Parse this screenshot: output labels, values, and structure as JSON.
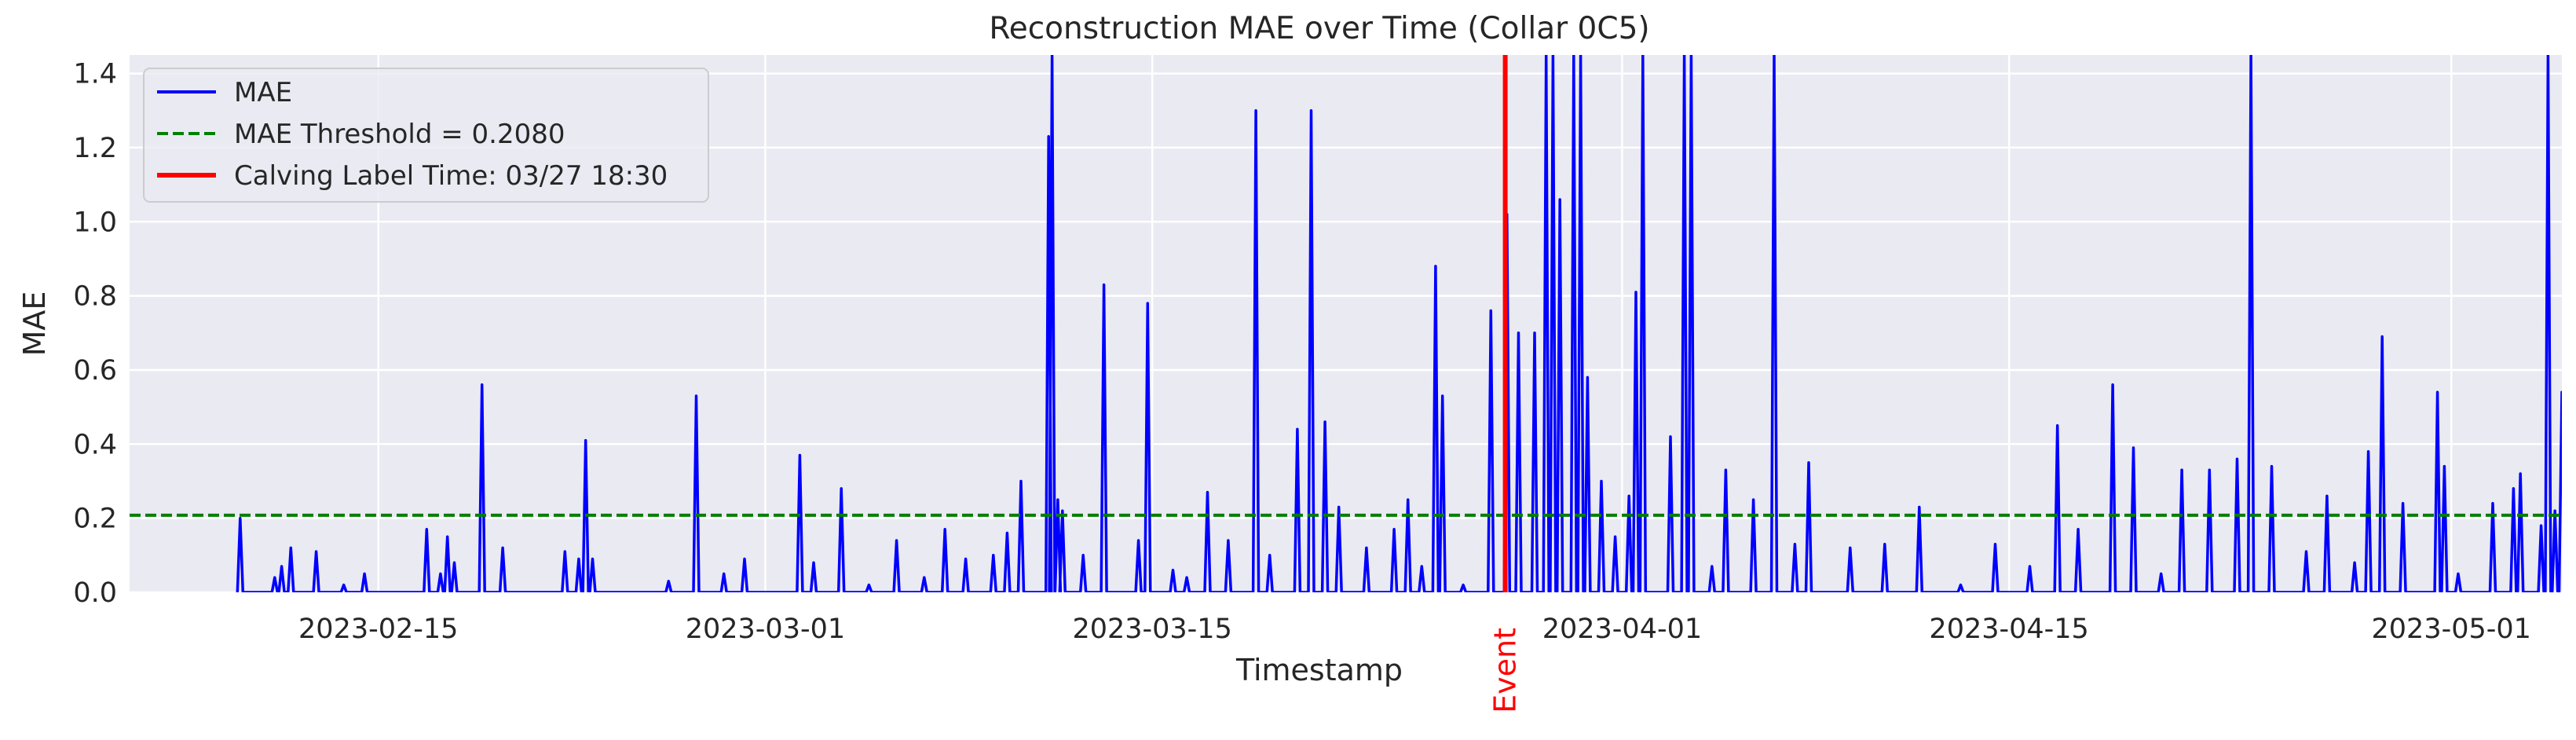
{
  "chart_data": {
    "type": "line",
    "title": "Reconstruction MAE over Time (Collar 0C5)",
    "xlabel": "Timestamp",
    "ylabel": "MAE",
    "xlim": [
      "2023-02-06",
      "2023-05-05"
    ],
    "ylim": [
      0,
      1.45
    ],
    "x_tick_labels": [
      "2023-02-15",
      "2023-03-01",
      "2023-03-15",
      "2023-04-01",
      "2023-04-15",
      "2023-05-01"
    ],
    "y_tick_labels": [
      "0.0",
      "0.2",
      "0.4",
      "0.6",
      "0.8",
      "1.0",
      "1.2",
      "1.4"
    ],
    "grid": true,
    "legend_position": "upper-left",
    "threshold": {
      "label": "MAE Threshold = 0.2080",
      "value": 0.208,
      "color": "#008000"
    },
    "event": {
      "label": "Calving Label Time: 03/27 18:30",
      "x": "2023-03-27 18:30",
      "marker_text": "Event",
      "color": "#ff0000"
    },
    "series": [
      {
        "name": "MAE",
        "color": "#0000ff",
        "points": [
          [
            "2023-02-10 00:00",
            0.2
          ],
          [
            "2023-02-10 06:00",
            0
          ],
          [
            "2023-02-11 06:00",
            0.04
          ],
          [
            "2023-02-11 12:00",
            0.07
          ],
          [
            "2023-02-11 20:00",
            0.12
          ],
          [
            "2023-02-12 06:00",
            0
          ],
          [
            "2023-02-12 18:00",
            0.11
          ],
          [
            "2023-02-13 18:00",
            0.02
          ],
          [
            "2023-02-14 12:00",
            0.05
          ],
          [
            "2023-02-16 18:00",
            0.17
          ],
          [
            "2023-02-17 06:00",
            0.05
          ],
          [
            "2023-02-17 12:00",
            0.15
          ],
          [
            "2023-02-17 18:00",
            0.08
          ],
          [
            "2023-02-18 18:00",
            0.56
          ],
          [
            "2023-02-19 12:00",
            0.12
          ],
          [
            "2023-02-21 18:00",
            0.11
          ],
          [
            "2023-02-22 06:00",
            0.09
          ],
          [
            "2023-02-22 12:00",
            0.41
          ],
          [
            "2023-02-22 18:00",
            0.09
          ],
          [
            "2023-02-25 12:00",
            0.03
          ],
          [
            "2023-02-26 12:00",
            0.53
          ],
          [
            "2023-02-27 12:00",
            0.05
          ],
          [
            "2023-02-28 06:00",
            0.09
          ],
          [
            "2023-03-02 06:00",
            0.37
          ],
          [
            "2023-03-02 18:00",
            0.08
          ],
          [
            "2023-03-03 18:00",
            0.28
          ],
          [
            "2023-03-04 18:00",
            0.02
          ],
          [
            "2023-03-05 18:00",
            0.14
          ],
          [
            "2023-03-06 18:00",
            0.04
          ],
          [
            "2023-03-07 12:00",
            0.17
          ],
          [
            "2023-03-08 06:00",
            0.09
          ],
          [
            "2023-03-09 06:00",
            0.1
          ],
          [
            "2023-03-09 18:00",
            0.16
          ],
          [
            "2023-03-10 06:00",
            0.3
          ],
          [
            "2023-03-11 06:00",
            1.23
          ],
          [
            "2023-03-11 09:00",
            1.45
          ],
          [
            "2023-03-11 14:00",
            0.25
          ],
          [
            "2023-03-11 18:00",
            0.22
          ],
          [
            "2023-03-12 12:00",
            0.1
          ],
          [
            "2023-03-13 06:00",
            0.83
          ],
          [
            "2023-03-14 12:00",
            0.14
          ],
          [
            "2023-03-14 20:00",
            0.78
          ],
          [
            "2023-03-15 18:00",
            0.06
          ],
          [
            "2023-03-16 06:00",
            0.04
          ],
          [
            "2023-03-17 00:00",
            0.27
          ],
          [
            "2023-03-17 18:00",
            0.14
          ],
          [
            "2023-03-18 18:00",
            1.3
          ],
          [
            "2023-03-19 06:00",
            0.1
          ],
          [
            "2023-03-20 06:00",
            0.44
          ],
          [
            "2023-03-20 18:00",
            1.3
          ],
          [
            "2023-03-21 06:00",
            0.46
          ],
          [
            "2023-03-21 18:00",
            0.23
          ],
          [
            "2023-03-22 18:00",
            0.12
          ],
          [
            "2023-03-23 18:00",
            0.17
          ],
          [
            "2023-03-24 06:00",
            0.25
          ],
          [
            "2023-03-24 18:00",
            0.07
          ],
          [
            "2023-03-25 06:00",
            0.88
          ],
          [
            "2023-03-25 12:00",
            0.53
          ],
          [
            "2023-03-26 06:00",
            0.02
          ],
          [
            "2023-03-27 06:00",
            0.76
          ],
          [
            "2023-03-27 20:00",
            1.02
          ],
          [
            "2023-03-28 06:00",
            0.7
          ],
          [
            "2023-03-28 20:00",
            0.7
          ],
          [
            "2023-03-29 06:00",
            1.45
          ],
          [
            "2023-03-29 12:00",
            1.45
          ],
          [
            "2023-03-29 18:00",
            1.06
          ],
          [
            "2023-03-30 06:00",
            1.45
          ],
          [
            "2023-03-30 12:00",
            1.45
          ],
          [
            "2023-03-30 18:00",
            0.58
          ],
          [
            "2023-03-31 06:00",
            0.3
          ],
          [
            "2023-03-31 18:00",
            0.15
          ],
          [
            "2023-04-01 06:00",
            0.26
          ],
          [
            "2023-04-01 12:00",
            0.81
          ],
          [
            "2023-04-01 18:00",
            1.45
          ],
          [
            "2023-04-02 18:00",
            0.42
          ],
          [
            "2023-04-03 06:00",
            1.45
          ],
          [
            "2023-04-03 12:00",
            1.45
          ],
          [
            "2023-04-04 06:00",
            0.07
          ],
          [
            "2023-04-04 18:00",
            0.33
          ],
          [
            "2023-04-05 18:00",
            0.25
          ],
          [
            "2023-04-06 12:00",
            1.45
          ],
          [
            "2023-04-07 06:00",
            0.13
          ],
          [
            "2023-04-07 18:00",
            0.35
          ],
          [
            "2023-04-09 06:00",
            0.12
          ],
          [
            "2023-04-10 12:00",
            0.13
          ],
          [
            "2023-04-11 18:00",
            0.23
          ],
          [
            "2023-04-13 06:00",
            0.02
          ],
          [
            "2023-04-14 12:00",
            0.13
          ],
          [
            "2023-04-15 18:00",
            0.07
          ],
          [
            "2023-04-16 18:00",
            0.45
          ],
          [
            "2023-04-17 12:00",
            0.17
          ],
          [
            "2023-04-18 18:00",
            0.56
          ],
          [
            "2023-04-19 12:00",
            0.39
          ],
          [
            "2023-04-20 12:00",
            0.05
          ],
          [
            "2023-04-21 06:00",
            0.33
          ],
          [
            "2023-04-22 06:00",
            0.33
          ],
          [
            "2023-04-23 06:00",
            0.36
          ],
          [
            "2023-04-23 18:00",
            1.45
          ],
          [
            "2023-04-24 12:00",
            0.34
          ],
          [
            "2023-04-25 18:00",
            0.11
          ],
          [
            "2023-04-26 12:00",
            0.26
          ],
          [
            "2023-04-27 12:00",
            0.08
          ],
          [
            "2023-04-28 00:00",
            0.38
          ],
          [
            "2023-04-28 12:00",
            0.69
          ],
          [
            "2023-04-29 06:00",
            0.24
          ],
          [
            "2023-04-30 12:00",
            0.54
          ],
          [
            "2023-04-30 18:00",
            0.34
          ],
          [
            "2023-05-01 06:00",
            0.05
          ],
          [
            "2023-05-02 12:00",
            0.24
          ],
          [
            "2023-05-03 06:00",
            0.28
          ],
          [
            "2023-05-03 12:00",
            0.32
          ],
          [
            "2023-05-04 06:00",
            0.18
          ],
          [
            "2023-05-04 12:00",
            1.45
          ],
          [
            "2023-05-04 18:00",
            0.22
          ],
          [
            "2023-05-05 00:00",
            0.54
          ]
        ]
      }
    ]
  }
}
